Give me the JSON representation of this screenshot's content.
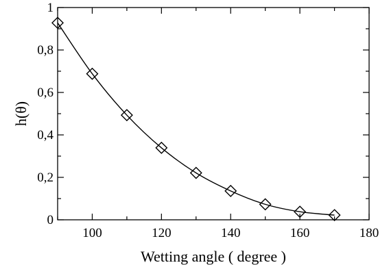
{
  "chart_data": {
    "type": "line",
    "title": "",
    "xlabel": "Wetting angle ( degree )",
    "ylabel": "h(θ)",
    "xlim": [
      90,
      180
    ],
    "ylim": [
      0,
      1
    ],
    "xticks": [
      100,
      120,
      140,
      160,
      180
    ],
    "xticks_minor": [
      90,
      110,
      130,
      150,
      170
    ],
    "yticks": [
      0,
      0.2,
      0.4,
      0.6,
      0.8,
      1
    ],
    "yticks_minor": [
      0.1,
      0.3,
      0.5,
      0.7,
      0.9
    ],
    "ytick_labels": [
      "0",
      "0,2",
      "0,4",
      "0,6",
      "0,8",
      "1"
    ],
    "xtick_labels": [
      "100",
      "120",
      "140",
      "160",
      "180"
    ],
    "grid": false,
    "legend": "none",
    "series": [
      {
        "marker": "diamond",
        "line": true,
        "x": [
          90,
          100,
          110,
          120,
          130,
          140,
          150,
          160,
          170
        ],
        "y": [
          0.928,
          0.688,
          0.493,
          0.339,
          0.221,
          0.136,
          0.073,
          0.038,
          0.022
        ]
      }
    ]
  }
}
